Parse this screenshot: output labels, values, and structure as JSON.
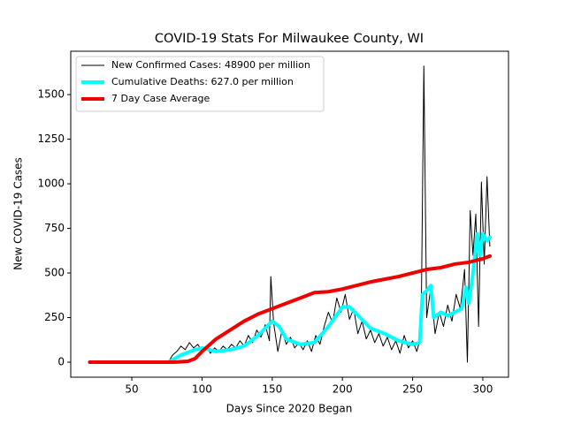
{
  "chart_data": {
    "type": "line",
    "title": "COVID-19 Stats For Milwaukee County, WI",
    "x_label": "Days Since 2020 Began",
    "y_label": "New COVID-19 Cases",
    "xlim": [
      6.5,
      318.3
    ],
    "ylim": [
      -84,
      1743
    ],
    "xticks": [
      50,
      100,
      150,
      200,
      250,
      300
    ],
    "yticks": [
      0,
      250,
      500,
      750,
      1000,
      1250,
      1500
    ],
    "legend": "upper left",
    "series": [
      {
        "name": "New Confirmed Cases: 48900 per million",
        "color": "#000000",
        "width": 1,
        "x": [
          76,
          79,
          82,
          85,
          88,
          91,
          94,
          97,
          100,
          103,
          106,
          109,
          112,
          115,
          118,
          121,
          124,
          127,
          130,
          133,
          136,
          139,
          142,
          145,
          148,
          149,
          151,
          154,
          157,
          160,
          163,
          166,
          169,
          172,
          175,
          178,
          181,
          184,
          187,
          190,
          193,
          196,
          199,
          202,
          205,
          208,
          211,
          214,
          217,
          220,
          223,
          226,
          229,
          232,
          235,
          238,
          241,
          244,
          247,
          250,
          253,
          256,
          258,
          260,
          263,
          266,
          269,
          272,
          275,
          278,
          281,
          284,
          287,
          289,
          291,
          293,
          295,
          297,
          299,
          301,
          303,
          305
        ],
        "values": [
          0,
          40,
          60,
          90,
          70,
          110,
          80,
          100,
          60,
          90,
          50,
          80,
          60,
          90,
          70,
          100,
          80,
          120,
          90,
          150,
          110,
          180,
          140,
          210,
          120,
          480,
          220,
          60,
          180,
          100,
          140,
          80,
          110,
          70,
          120,
          60,
          150,
          100,
          200,
          280,
          220,
          360,
          280,
          380,
          240,
          300,
          160,
          230,
          130,
          180,
          110,
          160,
          90,
          140,
          70,
          120,
          50,
          150,
          80,
          120,
          60,
          150,
          1660,
          250,
          420,
          160,
          280,
          200,
          320,
          230,
          380,
          300,
          520,
          0,
          850,
          600,
          830,
          200,
          1010,
          550,
          1040,
          650
        ]
      },
      {
        "name": "Cumulative Deaths: 627.0 per million",
        "color": "#00ffff",
        "width": 4,
        "x": [
          76,
          85,
          95,
          100,
          110,
          120,
          130,
          140,
          150,
          155,
          160,
          170,
          180,
          190,
          200,
          205,
          210,
          220,
          230,
          240,
          250,
          255,
          257,
          260,
          263,
          265,
          270,
          275,
          280,
          285,
          288,
          290,
          293,
          296,
          298,
          300,
          303,
          305
        ],
        "values": [
          0,
          40,
          70,
          80,
          60,
          70,
          90,
          150,
          230,
          200,
          130,
          100,
          110,
          200,
          310,
          310,
          270,
          190,
          160,
          120,
          100,
          110,
          380,
          400,
          430,
          250,
          280,
          260,
          280,
          300,
          420,
          330,
          500,
          720,
          600,
          720,
          680,
          700
        ]
      },
      {
        "name": "7 Day Case Average",
        "color": "#ee0000",
        "width": 4,
        "x": [
          20,
          40,
          60,
          80,
          90,
          95,
          100,
          110,
          120,
          130,
          140,
          150,
          160,
          170,
          180,
          190,
          200,
          210,
          220,
          230,
          240,
          250,
          260,
          270,
          280,
          290,
          300,
          305
        ],
        "values": [
          0,
          0,
          0,
          0,
          5,
          20,
          60,
          130,
          180,
          230,
          270,
          300,
          330,
          360,
          390,
          395,
          410,
          430,
          450,
          465,
          480,
          500,
          520,
          530,
          550,
          560,
          580,
          595
        ]
      }
    ]
  }
}
